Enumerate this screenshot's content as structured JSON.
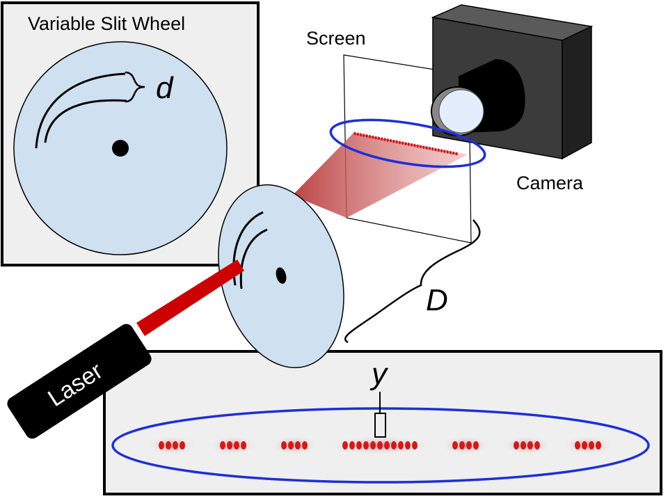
{
  "labels": {
    "wheel_title": "Variable Slit Wheel",
    "screen": "Screen",
    "camera": "Camera",
    "laser": "Laser",
    "slit_spacing": "d",
    "distance": "D",
    "fringe_spacing": "y"
  },
  "colors": {
    "wheel_fill": "#cfe0f0",
    "panel_fill": "#efefef",
    "beam_red": "#cc0000",
    "dot_red": "#d11a1a",
    "outline_blue": "#1f2fd6",
    "camera_body": "#3b3b3b",
    "laser_body": "#000000"
  },
  "icons": {
    "camera": "camera-icon",
    "laser": "laser-icon",
    "slit_wheel": "slit-wheel-icon"
  },
  "fringe_pattern": {
    "side_groups_per_side": 3,
    "dots_per_side_group": 4,
    "central_group_dots": 11
  }
}
